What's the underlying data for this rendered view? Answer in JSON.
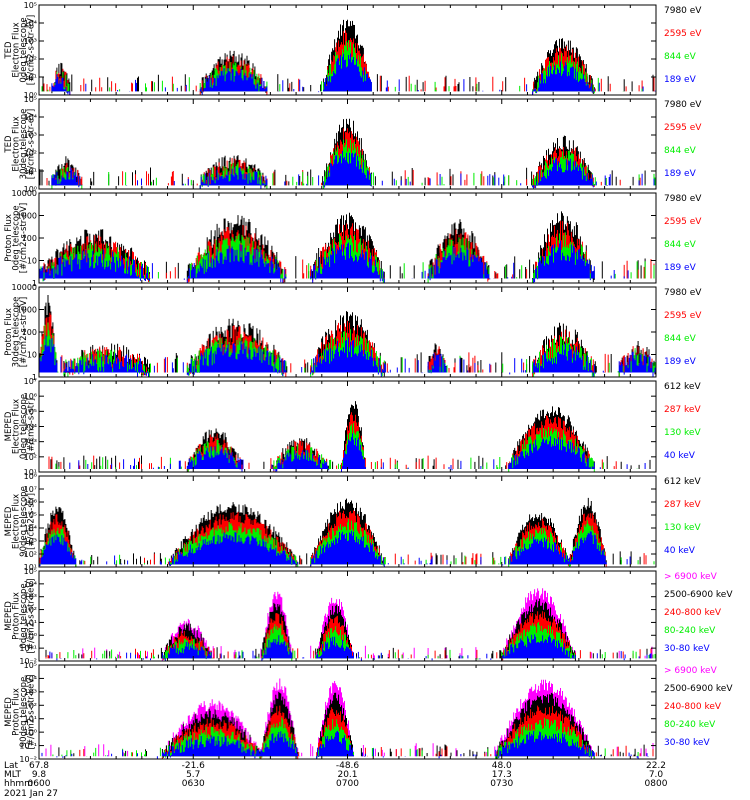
{
  "colors": {
    "black": "#000000",
    "red": "#ff0000",
    "green": "#00ee00",
    "blue": "#0000ff",
    "magenta": "#ff00ff"
  },
  "chart_data": [
    {
      "type": "line",
      "ylabel": "TED\nElectron Flux\n0deg telescope\n[#/cm2-s-str-eV]",
      "yscale": "log",
      "yticks": [
        "10⁰",
        "10¹",
        "10²",
        "10³",
        "10⁴",
        "10⁵"
      ],
      "ylim_exp": [
        0,
        5
      ],
      "legend": [
        {
          "label": "7980 eV",
          "color": "#000000"
        },
        {
          "label": "2595 eV",
          "color": "#ff0000"
        },
        {
          "label": "844 eV",
          "color": "#00ee00"
        },
        {
          "label": "189 eV",
          "color": "#0000ff"
        }
      ],
      "bursts": [
        [
          0.02,
          0.05,
          1.4
        ],
        [
          0.26,
          0.37,
          2.1
        ],
        [
          0.46,
          0.54,
          3.9
        ],
        [
          0.8,
          0.9,
          2.8
        ]
      ]
    },
    {
      "type": "line",
      "ylabel": "TED\nElectron Flux\n30deg telescope\n[#/cm2-s-str-eV]",
      "yscale": "log",
      "yticks": [
        "10⁰",
        "10¹",
        "10²",
        "10³",
        "10⁴",
        "10⁵"
      ],
      "ylim_exp": [
        0,
        5
      ],
      "legend": [
        {
          "label": "7980 eV",
          "color": "#000000"
        },
        {
          "label": "2595 eV",
          "color": "#ff0000"
        },
        {
          "label": "844 eV",
          "color": "#00ee00"
        },
        {
          "label": "189 eV",
          "color": "#0000ff"
        }
      ],
      "bursts": [
        [
          0.02,
          0.07,
          1.4
        ],
        [
          0.26,
          0.37,
          1.5
        ],
        [
          0.46,
          0.54,
          3.6
        ],
        [
          0.8,
          0.9,
          2.6
        ]
      ]
    },
    {
      "type": "line",
      "ylabel": "Proton Flux\n0deg telescope\n[#/cm2-s-str-eV]",
      "yscale": "log",
      "yticks": [
        "1",
        "10",
        "100",
        "1000",
        "10000"
      ],
      "ylim_exp": [
        0,
        4
      ],
      "legend": [
        {
          "label": "7980 eV",
          "color": "#000000"
        },
        {
          "label": "2595 eV",
          "color": "#ff0000"
        },
        {
          "label": "844 eV",
          "color": "#00ee00"
        },
        {
          "label": "189 eV",
          "color": "#0000ff"
        }
      ],
      "bursts": [
        [
          0.0,
          0.18,
          2.0
        ],
        [
          0.24,
          0.4,
          2.6
        ],
        [
          0.44,
          0.56,
          2.7
        ],
        [
          0.63,
          0.73,
          2.4
        ],
        [
          0.8,
          0.9,
          2.8
        ]
      ]
    },
    {
      "type": "line",
      "ylabel": "Proton Flux\n30deg telescope\n[#/cm2-s-str-eV]",
      "yscale": "log",
      "yticks": [
        "1",
        "10",
        "100",
        "1000",
        "10000"
      ],
      "ylim_exp": [
        0,
        4
      ],
      "legend": [
        {
          "label": "7980 eV",
          "color": "#000000"
        },
        {
          "label": "2595 eV",
          "color": "#ff0000"
        },
        {
          "label": "844 eV",
          "color": "#00ee00"
        },
        {
          "label": "189 eV",
          "color": "#0000ff"
        }
      ],
      "bursts": [
        [
          0.0,
          0.03,
          3.2
        ],
        [
          0.04,
          0.18,
          1.1
        ],
        [
          0.24,
          0.4,
          2.2
        ],
        [
          0.44,
          0.56,
          2.5
        ],
        [
          0.63,
          0.66,
          1.1
        ],
        [
          0.8,
          0.9,
          2.0
        ],
        [
          0.94,
          1.0,
          1.2
        ]
      ]
    },
    {
      "type": "line",
      "ylabel": "MEPED\nElectron Flux\n0deg telescope\n[#/cm2-s-str]",
      "yscale": "log",
      "yticks": [
        "10¹",
        "10²",
        "10³",
        "10⁴",
        "10⁵",
        "10⁶",
        "10⁷"
      ],
      "ylim_exp": [
        1,
        7
      ],
      "legend": [
        {
          "label": "612 keV",
          "color": "#000000"
        },
        {
          "label": "287 keV",
          "color": "#ff0000"
        },
        {
          "label": "130 keV",
          "color": "#00ee00"
        },
        {
          "label": "40 keV",
          "color": "#0000ff"
        }
      ],
      "bursts": [
        [
          0.24,
          0.33,
          3.5
        ],
        [
          0.38,
          0.47,
          3.0
        ],
        [
          0.49,
          0.53,
          5.4
        ],
        [
          0.76,
          0.9,
          5.0
        ]
      ]
    },
    {
      "type": "line",
      "ylabel": "MEPED\nElectron Flux\n90deg telescope\n[#/cm2-s-str]",
      "yscale": "log",
      "yticks": [
        "10¹",
        "10²",
        "10³",
        "10⁴",
        "10⁵",
        "10⁶",
        "10⁷",
        "10⁸"
      ],
      "ylim_exp": [
        1,
        8
      ],
      "legend": [
        {
          "label": "612 keV",
          "color": "#000000"
        },
        {
          "label": "287 keV",
          "color": "#ff0000"
        },
        {
          "label": "130 keV",
          "color": "#00ee00"
        },
        {
          "label": "40 keV",
          "color": "#0000ff"
        }
      ],
      "bursts": [
        [
          0.0,
          0.06,
          5.4
        ],
        [
          0.21,
          0.42,
          5.6
        ],
        [
          0.44,
          0.56,
          5.9
        ],
        [
          0.76,
          0.86,
          5.0
        ],
        [
          0.86,
          0.92,
          5.9
        ]
      ]
    },
    {
      "type": "line",
      "ylabel": "MEPED\nProton Flux\n0deg telescope\n[#/cm2-s-str-keV]",
      "yscale": "log",
      "yticks": [
        "10⁻²",
        "10⁻¹",
        "10⁰",
        "10¹",
        "10²",
        "10³",
        "10⁴",
        "10⁵"
      ],
      "ylim_exp": [
        -2,
        5
      ],
      "legend": [
        {
          "label": "> 6900 keV",
          "color": "#ff00ff"
        },
        {
          "label": "2500-6900 keV",
          "color": "#000000"
        },
        {
          "label": "240-800 keV",
          "color": "#ff0000"
        },
        {
          "label": "80-240 keV",
          "color": "#00ee00"
        },
        {
          "label": "30-80 keV",
          "color": "#0000ff"
        }
      ],
      "bursts": [
        [
          0.2,
          0.28,
          1.0
        ],
        [
          0.36,
          0.41,
          3.2
        ],
        [
          0.45,
          0.51,
          2.8
        ],
        [
          0.75,
          0.87,
          3.3
        ]
      ]
    },
    {
      "type": "line",
      "ylabel": "MEPED\nProton Flux\n90deg telescope\n[#/cm2-s-str-keV]",
      "yscale": "log",
      "yticks": [
        "10⁻²",
        "10⁻¹",
        "10⁰",
        "10¹",
        "10²",
        "10³",
        "10⁴",
        "10⁵"
      ],
      "ylim_exp": [
        -2,
        5
      ],
      "legend": [
        {
          "label": "> 6900 keV",
          "color": "#ff00ff"
        },
        {
          "label": "2500-6900 keV",
          "color": "#000000"
        },
        {
          "label": "240-800 keV",
          "color": "#ff0000"
        },
        {
          "label": "80-240 keV",
          "color": "#00ee00"
        },
        {
          "label": "30-80 keV",
          "color": "#0000ff"
        }
      ],
      "bursts": [
        [
          0.2,
          0.36,
          2.0
        ],
        [
          0.36,
          0.42,
          3.6
        ],
        [
          0.45,
          0.51,
          3.5
        ],
        [
          0.74,
          0.9,
          3.5
        ]
      ]
    }
  ],
  "xaxis": {
    "row_labels": [
      "Lat",
      "MLT",
      "hhmm"
    ],
    "date": "2021 Jan 27",
    "ticks": [
      {
        "lat": "67.8",
        "mlt": "9.8",
        "time": "0600"
      },
      {
        "lat": "-21.6",
        "mlt": "5.7",
        "time": "0630"
      },
      {
        "lat": "-48.6",
        "mlt": "20.1",
        "time": "0700"
      },
      {
        "lat": "48.0",
        "mlt": "17.3",
        "time": "0730"
      },
      {
        "lat": "22.2",
        "mlt": "7.0",
        "time": "0800"
      }
    ]
  }
}
